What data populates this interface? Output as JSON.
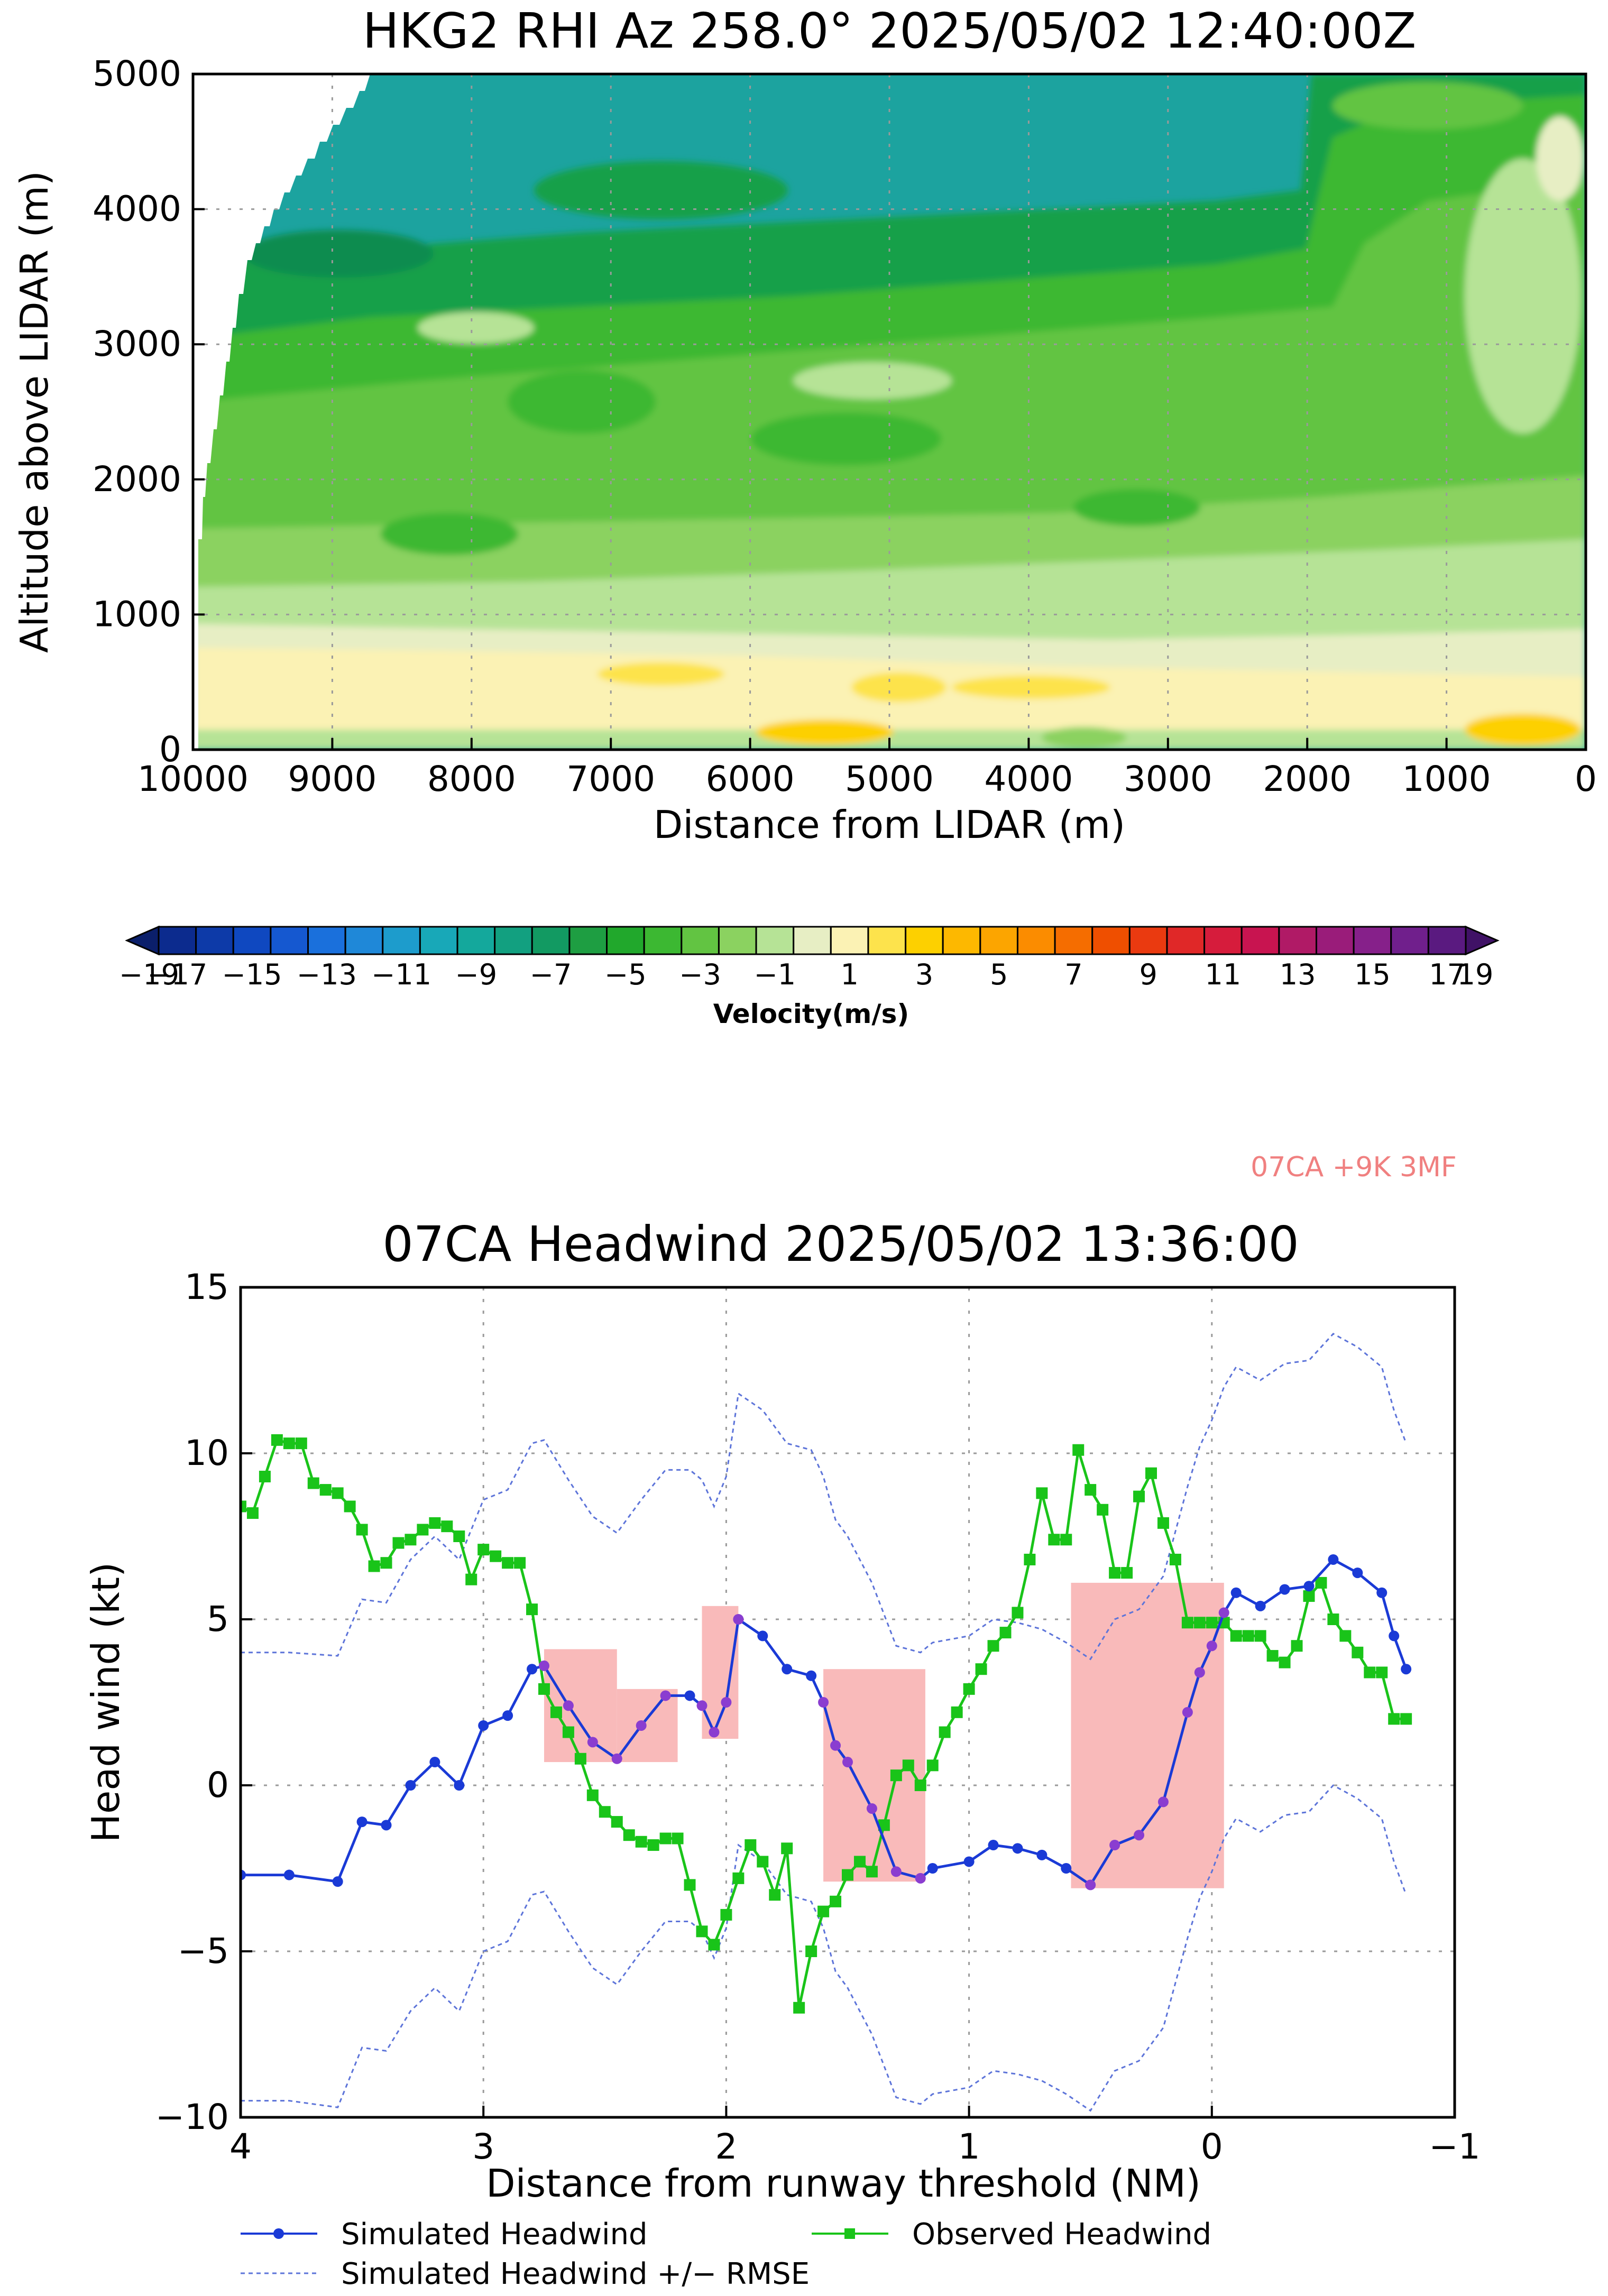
{
  "colors": {
    "sim": "#1a3ad6",
    "obs": "#19c419",
    "band": "#5d74d9",
    "box": "#f9baba",
    "note": "#f08080",
    "purple": "#8a3dd0"
  },
  "top_chart": {
    "title": "HKG2 RHI Az 258.0° 2025/05/02 12:40:00Z",
    "xlabel": "Distance from LIDAR (m)",
    "ylabel": "Altitude above LIDAR (m)",
    "xlim": [
      10000,
      0
    ],
    "ylim": [
      0,
      5000
    ],
    "xticks": [
      "10000",
      "9000",
      "8000",
      "7000",
      "6000",
      "5000",
      "4000",
      "3000",
      "2000",
      "1000",
      "0"
    ],
    "yticks": [
      "0",
      "1000",
      "2000",
      "3000",
      "4000",
      "5000"
    ]
  },
  "colorbar": {
    "label": "Velocity(m/s)",
    "tick_labels": [
      "−19",
      "−17",
      "−15",
      "−13",
      "−11",
      "−9",
      "−7",
      "−5",
      "−3",
      "−1",
      "1",
      "3",
      "5",
      "7",
      "9",
      "11",
      "13",
      "15",
      "17",
      "19"
    ],
    "colors": [
      "#0b1f6b",
      "#0c2b8e",
      "#0d3aa8",
      "#0f48c0",
      "#1558d0",
      "#1a70dc",
      "#1f88d8",
      "#1d9ccc",
      "#18a8b8",
      "#14a89c",
      "#12a080",
      "#129a62",
      "#1e9e42",
      "#21a82c",
      "#3cb832",
      "#62c442",
      "#8bd260",
      "#b6e396",
      "#e7eec4",
      "#fbf2b4",
      "#fde34c",
      "#fdd000",
      "#fdb800",
      "#fca500",
      "#fb8c00",
      "#f56d00",
      "#ef4f00",
      "#ea3a10",
      "#e02828",
      "#d61c3c",
      "#c81450",
      "#b01a66",
      "#9a1c7a",
      "#86208a",
      "#701f8c",
      "#5a1a80",
      "#401266"
    ]
  },
  "top_note": "07CA +9K 3MF",
  "chart_data": [
    {
      "type": "heatmap",
      "title": "HKG2 RHI Az 258.0° 2025/05/02 12:40:00Z",
      "xlabel": "Distance from LIDAR (m)",
      "ylabel": "Altitude above LIDAR (m)",
      "xlim": [
        10000,
        0
      ],
      "ylim": [
        0,
        5000
      ],
      "grid": true,
      "colorbar_label": "Velocity(m/s)",
      "colorbar_range": [
        -19,
        19
      ],
      "layers": [
        {
          "name": "near-surface yellow",
          "value": 4,
          "altitude_range": [
            0,
            400
          ]
        },
        {
          "name": "low cream layer",
          "value": 1,
          "altitude_range": [
            400,
            1000
          ]
        },
        {
          "name": "light green layer",
          "value": -1,
          "altitude_range": [
            1000,
            1500
          ]
        },
        {
          "name": "green layer",
          "value": -3,
          "altitude_range": [
            1500,
            2900
          ]
        },
        {
          "name": "darker green layer",
          "value": -5,
          "altitude_range": [
            2900,
            3800
          ]
        },
        {
          "name": "teal layer",
          "value": -7,
          "altitude_range": [
            3800,
            5000
          ]
        }
      ]
    },
    {
      "type": "line",
      "title": "07CA Headwind 2025/05/02 13:36:00",
      "xlabel": "Distance from runway threshold (NM)",
      "ylabel": "Head wind (kt)",
      "xlim": [
        4,
        -1
      ],
      "ylim": [
        -10,
        15
      ],
      "grid": true,
      "xticks": [
        "4",
        "3",
        "2",
        "1",
        "0",
        "−1"
      ],
      "yticks": [
        "−10",
        "−5",
        "0",
        "5",
        "10",
        "15"
      ],
      "series": [
        {
          "name": "Simulated Headwind",
          "style": "line-dot",
          "x": [
            4.0,
            3.8,
            3.6,
            3.5,
            3.4,
            3.3,
            3.2,
            3.1,
            3.0,
            2.9,
            2.8,
            2.75,
            2.65,
            2.55,
            2.45,
            2.35,
            2.25,
            2.15,
            2.1,
            2.05,
            2.0,
            1.95,
            1.85,
            1.75,
            1.65,
            1.6,
            1.55,
            1.5,
            1.4,
            1.3,
            1.2,
            1.15,
            1.0,
            0.9,
            0.8,
            0.7,
            0.6,
            0.5,
            0.4,
            0.3,
            0.2,
            0.1,
            0.05,
            0.0,
            -0.05,
            -0.1,
            -0.2,
            -0.3,
            -0.4,
            -0.5,
            -0.6,
            -0.7,
            -0.75,
            -0.8
          ],
          "values": [
            -2.7,
            -2.7,
            -2.9,
            -1.1,
            -1.2,
            0.0,
            0.7,
            0.0,
            1.8,
            2.1,
            3.5,
            3.6,
            2.4,
            1.3,
            0.8,
            1.8,
            2.7,
            2.7,
            2.4,
            1.6,
            2.5,
            5.0,
            4.5,
            3.5,
            3.3,
            2.5,
            1.2,
            0.7,
            -0.7,
            -2.6,
            -2.8,
            -2.5,
            -2.3,
            -1.8,
            -1.9,
            -2.1,
            -2.5,
            -3.0,
            -1.8,
            -1.5,
            -0.5,
            2.2,
            3.4,
            4.2,
            5.2,
            5.8,
            5.4,
            5.9,
            6.0,
            6.8,
            6.4,
            5.8,
            4.5,
            3.5
          ]
        },
        {
          "name": "Observed Headwind",
          "style": "line-square",
          "x": [
            4.0,
            3.95,
            3.9,
            3.85,
            3.8,
            3.75,
            3.7,
            3.65,
            3.6,
            3.55,
            3.5,
            3.45,
            3.4,
            3.35,
            3.3,
            3.25,
            3.2,
            3.15,
            3.1,
            3.05,
            3.0,
            2.95,
            2.9,
            2.85,
            2.8,
            2.75,
            2.7,
            2.65,
            2.6,
            2.55,
            2.5,
            2.45,
            2.4,
            2.35,
            2.3,
            2.25,
            2.2,
            2.15,
            2.1,
            2.05,
            2.0,
            1.95,
            1.9,
            1.85,
            1.8,
            1.75,
            1.7,
            1.65,
            1.6,
            1.55,
            1.5,
            1.45,
            1.4,
            1.35,
            1.3,
            1.25,
            1.2,
            1.15,
            1.1,
            1.05,
            1.0,
            0.95,
            0.9,
            0.85,
            0.8,
            0.75,
            0.7,
            0.65,
            0.6,
            0.55,
            0.5,
            0.45,
            0.4,
            0.35,
            0.3,
            0.25,
            0.2,
            0.15,
            0.1,
            0.05,
            0.0,
            -0.05,
            -0.1,
            -0.15,
            -0.2,
            -0.25,
            -0.3,
            -0.35,
            -0.4,
            -0.45,
            -0.5,
            -0.55,
            -0.6,
            -0.65,
            -0.7,
            -0.75,
            -0.8
          ],
          "values": [
            8.4,
            8.2,
            9.3,
            10.4,
            10.3,
            10.3,
            9.1,
            8.9,
            8.8,
            8.4,
            7.7,
            6.6,
            6.7,
            7.3,
            7.4,
            7.7,
            7.9,
            7.8,
            7.5,
            6.2,
            7.1,
            6.9,
            6.7,
            6.7,
            5.3,
            2.9,
            2.2,
            1.6,
            0.8,
            -0.3,
            -0.8,
            -1.1,
            -1.5,
            -1.7,
            -1.8,
            -1.6,
            -1.6,
            -3.0,
            -4.4,
            -4.8,
            -3.9,
            -2.8,
            -1.8,
            -2.3,
            -3.3,
            -1.9,
            -6.7,
            -5.0,
            -3.8,
            -3.5,
            -2.7,
            -2.3,
            -2.6,
            -1.2,
            0.3,
            0.6,
            0.0,
            0.6,
            1.6,
            2.2,
            2.9,
            3.5,
            4.2,
            4.6,
            5.2,
            6.8,
            8.8,
            7.4,
            7.4,
            10.1,
            8.9,
            8.3,
            6.4,
            6.4,
            8.7,
            9.4,
            7.9,
            6.8,
            4.9,
            4.9,
            4.9,
            4.9,
            4.5,
            4.5,
            4.5,
            3.9,
            3.7,
            4.2,
            5.7,
            6.1,
            5.0,
            4.5,
            4.0,
            3.4,
            3.4,
            2.0,
            2.0
          ]
        },
        {
          "name": "Simulated Headwind +/− RMSE",
          "style": "dashed",
          "upper_x": [
            4.0,
            3.8,
            3.6,
            3.5,
            3.4,
            3.3,
            3.2,
            3.1,
            3.0,
            2.9,
            2.8,
            2.75,
            2.65,
            2.55,
            2.45,
            2.35,
            2.25,
            2.15,
            2.1,
            2.05,
            2.0,
            1.95,
            1.85,
            1.75,
            1.65,
            1.6,
            1.55,
            1.5,
            1.4,
            1.3,
            1.2,
            1.15,
            1.0,
            0.9,
            0.8,
            0.7,
            0.6,
            0.5,
            0.4,
            0.3,
            0.2,
            0.1,
            0.05,
            0.0,
            -0.05,
            -0.1,
            -0.2,
            -0.3,
            -0.4,
            -0.5,
            -0.6,
            -0.7,
            -0.75,
            -0.8
          ],
          "upper_values": [
            4.0,
            4.0,
            3.9,
            5.6,
            5.5,
            6.8,
            7.5,
            6.8,
            8.6,
            8.9,
            10.3,
            10.4,
            9.2,
            8.1,
            7.6,
            8.6,
            9.5,
            9.5,
            9.2,
            8.4,
            9.3,
            11.8,
            11.3,
            10.3,
            10.1,
            9.3,
            8.0,
            7.5,
            6.1,
            4.2,
            4.0,
            4.3,
            4.5,
            5.0,
            4.9,
            4.7,
            4.3,
            3.8,
            5.0,
            5.3,
            6.3,
            9.0,
            10.2,
            11.0,
            12.0,
            12.6,
            12.2,
            12.7,
            12.8,
            13.6,
            13.2,
            12.6,
            11.3,
            10.3
          ],
          "lower_values": [
            -9.5,
            -9.5,
            -9.7,
            -7.9,
            -8.0,
            -6.8,
            -6.1,
            -6.8,
            -5.0,
            -4.7,
            -3.3,
            -3.2,
            -4.4,
            -5.5,
            -6.0,
            -5.0,
            -4.1,
            -4.1,
            -4.4,
            -5.2,
            -4.3,
            -1.8,
            -2.3,
            -3.3,
            -3.5,
            -4.3,
            -5.6,
            -6.1,
            -7.5,
            -9.4,
            -9.6,
            -9.3,
            -9.1,
            -8.6,
            -8.7,
            -8.9,
            -9.3,
            -9.8,
            -8.6,
            -8.3,
            -7.3,
            -4.6,
            -3.4,
            -2.6,
            -1.6,
            -1.0,
            -1.4,
            -0.9,
            -0.8,
            0.0,
            -0.4,
            -1.0,
            -2.3,
            -3.3
          ]
        }
      ],
      "shaded_regions": [
        {
          "x_range": [
            2.75,
            2.45
          ],
          "y_range": [
            0.7,
            4.1
          ]
        },
        {
          "x_range": [
            2.45,
            2.2
          ],
          "y_range": [
            0.7,
            2.9
          ]
        },
        {
          "x_range": [
            2.1,
            1.95
          ],
          "y_range": [
            1.4,
            5.4
          ]
        },
        {
          "x_range": [
            1.6,
            1.18
          ],
          "y_range": [
            -2.9,
            3.5
          ]
        },
        {
          "x_range": [
            0.58,
            -0.05
          ],
          "y_range": [
            -3.1,
            6.1
          ]
        }
      ],
      "legend_position": "bottom"
    }
  ],
  "legend": {
    "sim": "Simulated Headwind",
    "obs": "Observed Headwind",
    "rmse": "Simulated Headwind +/− RMSE"
  }
}
